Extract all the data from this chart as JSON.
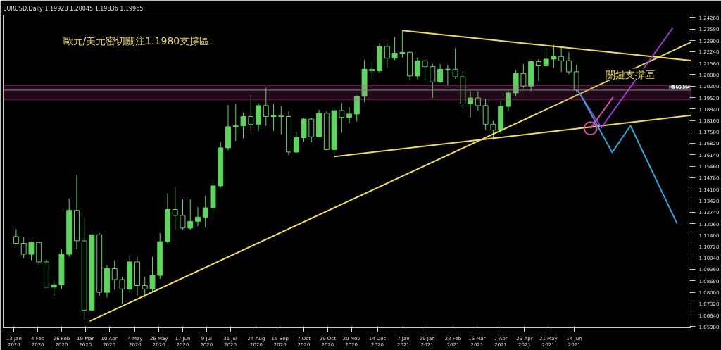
{
  "chart_data": {
    "type": "candlestick",
    "title": "EURUSD,Daily 1.19928 1.20045 1.19836 1.19965",
    "color": "#5cd65c",
    "x": [
      "2020-01-15",
      "2020-01-22",
      "2020-01-29",
      "2020-02-05",
      "2020-02-12",
      "2020-02-19",
      "2020-02-26",
      "2020-03-04",
      "2020-03-11",
      "2020-03-18",
      "2020-03-25",
      "2020-04-01",
      "2020-04-08",
      "2020-04-15",
      "2020-04-22",
      "2020-04-29",
      "2020-05-06",
      "2020-05-13",
      "2020-05-20",
      "2020-05-27",
      "2020-06-03",
      "2020-06-10",
      "2020-06-17",
      "2020-06-24",
      "2020-07-01",
      "2020-07-08",
      "2020-07-15",
      "2020-07-22",
      "2020-07-29",
      "2020-08-05",
      "2020-08-12",
      "2020-08-19",
      "2020-08-26",
      "2020-09-02",
      "2020-09-09",
      "2020-09-16",
      "2020-09-23",
      "2020-09-30",
      "2020-10-07",
      "2020-10-14",
      "2020-10-21",
      "2020-10-28",
      "2020-11-04",
      "2020-11-11",
      "2020-11-18",
      "2020-11-25",
      "2020-12-02",
      "2020-12-09",
      "2020-12-16",
      "2020-12-23",
      "2020-12-30",
      "2021-01-06",
      "2021-01-13",
      "2021-01-20",
      "2021-01-27",
      "2021-02-03",
      "2021-02-10",
      "2021-02-17",
      "2021-02-24",
      "2021-03-03",
      "2021-03-10",
      "2021-03-17",
      "2021-03-24",
      "2021-03-31",
      "2021-04-07",
      "2021-04-14",
      "2021-04-21",
      "2021-04-28",
      "2021-05-05",
      "2021-05-12",
      "2021-05-19",
      "2021-05-26",
      "2021-06-02",
      "2021-06-09",
      "2021-06-16"
    ],
    "ohlc": [
      [
        1.113,
        1.1173,
        1.1085,
        1.109
      ],
      [
        1.109,
        1.113,
        1.1,
        1.1025
      ],
      [
        1.1025,
        1.11,
        1.099,
        1.1095
      ],
      [
        1.1095,
        1.1095,
        1.096,
        1.098
      ],
      [
        1.098,
        1.0995,
        1.083,
        1.083
      ],
      [
        1.083,
        1.0865,
        1.0779,
        1.0845
      ],
      [
        1.0845,
        1.1055,
        1.082,
        1.1025
      ],
      [
        1.1025,
        1.1355,
        1.101,
        1.1285
      ],
      [
        1.1285,
        1.1495,
        1.1055,
        1.1105
      ],
      [
        1.1105,
        1.124,
        1.0636,
        1.0695
      ],
      [
        1.0695,
        1.1147,
        1.069,
        1.114
      ],
      [
        1.114,
        1.115,
        1.078,
        1.08
      ],
      [
        1.08,
        1.096,
        1.077,
        1.094
      ],
      [
        1.094,
        1.099,
        1.0815,
        1.0875
      ],
      [
        1.0875,
        1.089,
        1.073,
        1.082
      ],
      [
        1.082,
        1.102,
        1.08,
        1.098
      ],
      [
        1.098,
        1.101,
        1.078,
        1.084
      ],
      [
        1.084,
        1.089,
        1.077,
        1.082
      ],
      [
        1.082,
        1.101,
        1.08,
        1.09
      ],
      [
        1.09,
        1.115,
        1.088,
        1.11
      ],
      [
        1.11,
        1.1385,
        1.109,
        1.129
      ],
      [
        1.129,
        1.1422,
        1.117,
        1.1255
      ],
      [
        1.1255,
        1.135,
        1.117,
        1.118
      ],
      [
        1.118,
        1.135,
        1.117,
        1.122
      ],
      [
        1.122,
        1.1305,
        1.119,
        1.1245
      ],
      [
        1.1245,
        1.137,
        1.1185,
        1.13
      ],
      [
        1.13,
        1.145,
        1.1255,
        1.143
      ],
      [
        1.143,
        1.169,
        1.142,
        1.1655
      ],
      [
        1.1655,
        1.1908,
        1.164,
        1.178
      ],
      [
        1.178,
        1.1915,
        1.1695,
        1.1785
      ],
      [
        1.1785,
        1.1865,
        1.171,
        1.184
      ],
      [
        1.184,
        1.1965,
        1.1755,
        1.1795
      ],
      [
        1.1795,
        1.192,
        1.1755,
        1.1905
      ],
      [
        1.1905,
        1.2011,
        1.1785,
        1.184
      ],
      [
        1.184,
        1.1915,
        1.1755,
        1.1845
      ],
      [
        1.1845,
        1.19,
        1.1735,
        1.184
      ],
      [
        1.184,
        1.187,
        1.1612,
        1.163
      ],
      [
        1.163,
        1.175,
        1.1625,
        1.1715
      ],
      [
        1.1715,
        1.183,
        1.169,
        1.1825
      ],
      [
        1.1825,
        1.183,
        1.169,
        1.172
      ],
      [
        1.172,
        1.188,
        1.172,
        1.186
      ],
      [
        1.186,
        1.187,
        1.164,
        1.1645
      ],
      [
        1.1645,
        1.189,
        1.1603,
        1.1875
      ],
      [
        1.1875,
        1.192,
        1.1745,
        1.1835
      ],
      [
        1.1835,
        1.1895,
        1.18,
        1.1855
      ],
      [
        1.1855,
        1.1965,
        1.181,
        1.196
      ],
      [
        1.196,
        1.2175,
        1.1925,
        1.212
      ],
      [
        1.212,
        1.2165,
        1.206,
        1.211
      ],
      [
        1.211,
        1.2275,
        1.21,
        1.2255
      ],
      [
        1.2255,
        1.2275,
        1.213,
        1.2185
      ],
      [
        1.2185,
        1.231,
        1.2175,
        1.2215
      ],
      [
        1.2215,
        1.2349,
        1.219,
        1.222
      ],
      [
        1.222,
        1.223,
        1.2055,
        1.208
      ],
      [
        1.208,
        1.219,
        1.206,
        1.217
      ],
      [
        1.217,
        1.2185,
        1.206,
        1.2135
      ],
      [
        1.2135,
        1.215,
        1.195,
        1.2045
      ],
      [
        1.2045,
        1.215,
        1.204,
        1.212
      ],
      [
        1.212,
        1.2145,
        1.2025,
        1.212
      ],
      [
        1.212,
        1.2243,
        1.2065,
        1.2075
      ],
      [
        1.2075,
        1.211,
        1.189,
        1.1915
      ],
      [
        1.1915,
        1.199,
        1.1835,
        1.195
      ],
      [
        1.195,
        1.199,
        1.1875,
        1.1905
      ],
      [
        1.1905,
        1.1945,
        1.176,
        1.1795
      ],
      [
        1.1795,
        1.1815,
        1.1704,
        1.176
      ],
      [
        1.176,
        1.193,
        1.174,
        1.19
      ],
      [
        1.19,
        1.1995,
        1.187,
        1.198
      ],
      [
        1.198,
        1.2115,
        1.196,
        1.2095
      ],
      [
        1.2095,
        1.215,
        1.201,
        1.202
      ],
      [
        1.202,
        1.217,
        1.199,
        1.2165
      ],
      [
        1.2165,
        1.218,
        1.205,
        1.214
      ],
      [
        1.214,
        1.2245,
        1.2135,
        1.218
      ],
      [
        1.218,
        1.2266,
        1.213,
        1.2195
      ],
      [
        1.2195,
        1.2255,
        1.2105,
        1.217
      ],
      [
        1.217,
        1.222,
        1.209,
        1.2105
      ],
      [
        1.2105,
        1.2145,
        1.1984,
        1.1997
      ]
    ],
    "series": [
      {
        "type": "line",
        "color": "#f0e040",
        "x": [
          "2020-03-23",
          "2021-09-30"
        ],
        "values": [
          1.0629,
          1.228
        ]
      },
      {
        "type": "line",
        "color": "#f0e040",
        "x": [
          "2020-11-04",
          "2021-09-30"
        ],
        "values": [
          1.1603,
          1.1847
        ]
      },
      {
        "type": "line",
        "color": "#f0e040",
        "x": [
          "2021-01-06",
          "2021-09-30"
        ],
        "values": [
          1.2349,
          1.2171
        ]
      },
      {
        "type": "line",
        "color": "#9933dd",
        "x": [
          "2021-06-17",
          "2021-07-09",
          "2021-09-13"
        ],
        "values": [
          1.1997,
          1.1774,
          1.2364
        ]
      },
      {
        "type": "line",
        "color": "#22aadd",
        "x": [
          "2021-06-18",
          "2021-07-19",
          "2021-08-05",
          "2021-09-17"
        ],
        "values": [
          1.199,
          1.1628,
          1.1786,
          1.1207
        ]
      },
      {
        "type": "line",
        "color": "#dd44aa",
        "x": [
          "2021-06-29",
          "2021-07-20"
        ],
        "values": [
          1.177,
          1.1955
        ]
      },
      {
        "type": "scatter",
        "color": "#dd44aa",
        "marker": "circle",
        "x": [
          "2021-06-29"
        ],
        "values": [
          1.177
        ]
      }
    ],
    "bands": [
      {
        "axis": "y",
        "from": 1.194,
        "to": 1.2025,
        "color": "#dd44aa"
      }
    ],
    "ref_lines": [
      {
        "axis": "y",
        "value": 1.19965,
        "label": "1.19965",
        "color": "#888888"
      }
    ],
    "annotations": [
      "歐元/美元密切關注1.1980支撐區.",
      "關鍵支撐區"
    ],
    "xlim": [
      "2020-01-03",
      "2021-09-30"
    ],
    "xticks": [
      {
        "value": "2020-01-13",
        "label": "13 Jan 2020"
      },
      {
        "value": "2020-02-04",
        "label": "4 Feb 2020"
      },
      {
        "value": "2020-02-26",
        "label": "26 Feb 2020"
      },
      {
        "value": "2020-03-19",
        "label": "19 Mar 2020"
      },
      {
        "value": "2020-04-10",
        "label": "10 Apr 2020"
      },
      {
        "value": "2020-05-04",
        "label": "4 May 2020"
      },
      {
        "value": "2020-05-26",
        "label": "26 May 2020"
      },
      {
        "value": "2020-06-17",
        "label": "17 Jun 2020"
      },
      {
        "value": "2020-07-09",
        "label": "9 Jul 2020"
      },
      {
        "value": "2020-07-31",
        "label": "31 Jul 2020"
      },
      {
        "value": "2020-08-24",
        "label": "24 Aug 2020"
      },
      {
        "value": "2020-09-15",
        "label": "15 Sep 2020"
      },
      {
        "value": "2020-10-07",
        "label": "7 Oct 2020"
      },
      {
        "value": "2020-10-29",
        "label": "29 Oct 2020"
      },
      {
        "value": "2020-11-20",
        "label": "20 Nov 2020"
      },
      {
        "value": "2020-12-14",
        "label": "14 Dec 2020"
      },
      {
        "value": "2021-01-07",
        "label": "7 Jan 2021"
      },
      {
        "value": "2021-01-29",
        "label": "29 Jan 2021"
      },
      {
        "value": "2021-02-22",
        "label": "22 Feb 2021"
      },
      {
        "value": "2021-03-16",
        "label": "16 Mar 2021"
      },
      {
        "value": "2021-04-07",
        "label": "7 Apr 2021"
      },
      {
        "value": "2021-04-29",
        "label": "29 Apr 2021"
      },
      {
        "value": "2021-05-21",
        "label": "21 May 2021"
      },
      {
        "value": "2021-06-14",
        "label": "14 Jun 2021"
      }
    ],
    "ylim": [
      1.059,
      1.244
    ],
    "yticks": [
      {
        "value": 1.2426,
        "label": "1.24260"
      },
      {
        "value": 1.2358,
        "label": "1.23580"
      },
      {
        "value": 1.229,
        "label": "1.22900"
      },
      {
        "value": 1.2224,
        "label": "1.22240"
      },
      {
        "value": 1.2156,
        "label": "1.21560"
      },
      {
        "value": 1.2088,
        "label": "1.20880"
      },
      {
        "value": 1.202,
        "label": "1.20200"
      },
      {
        "value": 1.1952,
        "label": "1.19520"
      },
      {
        "value": 1.1884,
        "label": "1.18840"
      },
      {
        "value": 1.1816,
        "label": "1.18160"
      },
      {
        "value": 1.175,
        "label": "1.17500"
      },
      {
        "value": 1.1682,
        "label": "1.16820"
      },
      {
        "value": 1.1614,
        "label": "1.16140"
      },
      {
        "value": 1.1546,
        "label": "1.15460"
      },
      {
        "value": 1.1478,
        "label": "1.14780"
      },
      {
        "value": 1.141,
        "label": "1.14100"
      },
      {
        "value": 1.1342,
        "label": "1.13420"
      },
      {
        "value": 1.1274,
        "label": "1.12740"
      },
      {
        "value": 1.1206,
        "label": "1.12060"
      },
      {
        "value": 1.114,
        "label": "1.11400"
      },
      {
        "value": 1.1072,
        "label": "1.10720"
      },
      {
        "value": 1.1004,
        "label": "1.10040"
      },
      {
        "value": 1.0936,
        "label": "1.09360"
      },
      {
        "value": 1.0868,
        "label": "1.08680"
      },
      {
        "value": 1.08,
        "label": "1.08000"
      },
      {
        "value": 1.0732,
        "label": "1.07320"
      },
      {
        "value": 1.0664,
        "label": "1.06640"
      },
      {
        "value": 1.0598,
        "label": "1.05980"
      }
    ],
    "grid": false
  }
}
